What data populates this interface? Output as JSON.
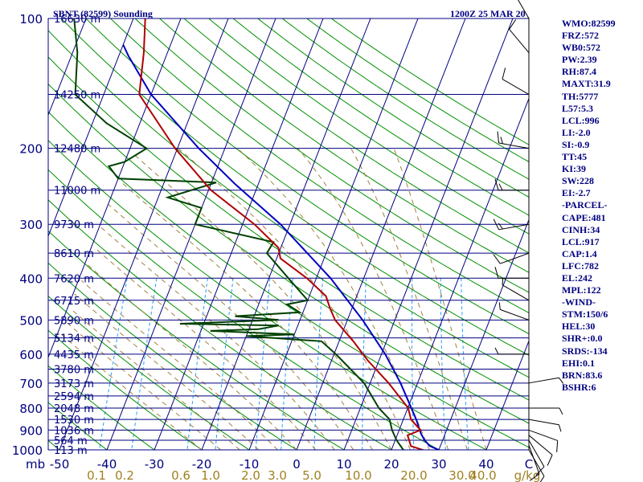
{
  "header": {
    "station_title": "SBNT (82599) Sounding",
    "time_title": "1200Z 25 MAR 20"
  },
  "indices": [
    "WMO:82599",
    "FRZ:572",
    "WB0:572",
    "PW:2.39",
    "RH:87.4",
    "MAXT:31.9",
    "TH:5777",
    "L57:5.3",
    "LCL:996",
    "LI:-2.0",
    "SI:-0.9",
    "TT:45",
    "KI:39",
    "SW:228",
    "EI:-2.7",
    "-PARCEL-",
    "CAPE:481",
    "CINH:34",
    "LCL:917",
    "CAP:1.4",
    "LFC:782",
    "EL:242",
    "MPL:122",
    "-WIND-",
    "STM:150/6",
    "HEL:30",
    "SHR+:0.0",
    "SRDS:-134",
    "EHI:0.1",
    "BRN:83.6",
    "BSHR:6"
  ],
  "colors": {
    "axes": "#000080",
    "isobar": "#000080",
    "isotherm": "#000080",
    "dry_adiabat": "#009000",
    "moist_adiabat": "#a08040",
    "mixing_ratio": "#20a0ff",
    "temperature": "#b00000",
    "dewpoint": "#004000",
    "parcel": "#0000c0",
    "wind": "#000000",
    "mixing_label": "#a08020"
  },
  "chart_data": {
    "type": "skew-t",
    "title": "SBNT (82599) Sounding",
    "y_axis_label": "mb",
    "x_axis_unit_label": "C",
    "mixing_ratio_unit_label": "g/kg",
    "pressure_ticks": [
      100,
      200,
      300,
      400,
      500,
      600,
      700,
      800,
      900,
      1000
    ],
    "temperature_ticks": [
      -50,
      -40,
      -30,
      -20,
      -10,
      0,
      10,
      20,
      30,
      40
    ],
    "mixing_ratio_labels": [
      "0.1",
      "0.2",
      "0.6",
      "1.0",
      "2.0",
      "3.0",
      "5.0",
      "10.0",
      "20.0",
      "30.0",
      "40.0"
    ],
    "height_levels": [
      {
        "p": 100,
        "label": "16630 m"
      },
      {
        "p": 150,
        "label": "14250 m"
      },
      {
        "p": 200,
        "label": "12480 m"
      },
      {
        "p": 250,
        "label": "11000 m"
      },
      {
        "p": 300,
        "label": "9730 m"
      },
      {
        "p": 350,
        "label": "8610 m"
      },
      {
        "p": 400,
        "label": "7620 m"
      },
      {
        "p": 450,
        "label": "6715 m"
      },
      {
        "p": 500,
        "label": "5890 m"
      },
      {
        "p": 550,
        "label": "5134 m"
      },
      {
        "p": 600,
        "label": "4435 m"
      },
      {
        "p": 650,
        "label": "3780 m"
      },
      {
        "p": 700,
        "label": "3173 m"
      },
      {
        "p": 750,
        "label": "2594 m"
      },
      {
        "p": 800,
        "label": "2048 m"
      },
      {
        "p": 850,
        "label": "1530 m"
      },
      {
        "p": 900,
        "label": "1036 m"
      },
      {
        "p": 950,
        "label": "564 m"
      },
      {
        "p": 1000,
        "label": "113 m"
      }
    ],
    "temperature": [
      [
        1007,
        27.2
      ],
      [
        1000,
        26.6
      ],
      [
        980,
        23.8
      ],
      [
        925,
        22.2
      ],
      [
        900,
        24.5
      ],
      [
        850,
        21.6
      ],
      [
        800,
        20.1
      ],
      [
        700,
        13.9
      ],
      [
        620,
        7.6
      ],
      [
        560,
        3.0
      ],
      [
        500,
        -2.6
      ],
      [
        470,
        -4.6
      ],
      [
        440,
        -6.5
      ],
      [
        400,
        -12.0
      ],
      [
        360,
        -19.2
      ],
      [
        340,
        -20.5
      ],
      [
        300,
        -27.5
      ],
      [
        250,
        -39.5
      ],
      [
        200,
        -50.5
      ],
      [
        150,
        -62.5
      ],
      [
        120,
        -65.0
      ],
      [
        100,
        -67.5
      ]
    ],
    "dewpoint": [
      [
        1007,
        23.0
      ],
      [
        1000,
        22.5
      ],
      [
        950,
        20.3
      ],
      [
        900,
        18.5
      ],
      [
        850,
        17.1
      ],
      [
        800,
        13.9
      ],
      [
        700,
        8.7
      ],
      [
        600,
        0.4
      ],
      [
        560,
        -3.7
      ],
      [
        545,
        -20.0
      ],
      [
        540,
        -10.0
      ],
      [
        530,
        -28.0
      ],
      [
        525,
        -18.0
      ],
      [
        515,
        -14.0
      ],
      [
        510,
        -35.0
      ],
      [
        500,
        -14.5
      ],
      [
        490,
        -24.0
      ],
      [
        480,
        -10.7
      ],
      [
        460,
        -14.0
      ],
      [
        450,
        -10.0
      ],
      [
        400,
        -15.9
      ],
      [
        350,
        -22.5
      ],
      [
        330,
        -22.0
      ],
      [
        300,
        -40.0
      ],
      [
        275,
        -40.0
      ],
      [
        260,
        -48.0
      ],
      [
        240,
        -39.0
      ],
      [
        235,
        -60.0
      ],
      [
        220,
        -63.0
      ],
      [
        215,
        -60.0
      ],
      [
        200,
        -56.5
      ],
      [
        175,
        -67.0
      ],
      [
        150,
        -76.0
      ],
      [
        120,
        -79.0
      ],
      [
        100,
        -82.5
      ]
    ],
    "parcel": [
      [
        1000,
        30.0
      ],
      [
        980,
        27.8
      ],
      [
        950,
        26.2
      ],
      [
        917,
        24.9
      ],
      [
        850,
        22.7
      ],
      [
        700,
        16.4
      ],
      [
        600,
        10.8
      ],
      [
        500,
        3.2
      ],
      [
        400,
        -7.0
      ],
      [
        300,
        -22.0
      ],
      [
        242,
        -34.9
      ],
      [
        200,
        -45.5
      ],
      [
        150,
        -60.0
      ],
      [
        122,
        -68.0
      ],
      [
        115,
        -70.0
      ]
    ],
    "wind_barbs": [
      {
        "p": 1000,
        "dir": 150,
        "spd": 5
      },
      {
        "p": 975,
        "dir": 160,
        "spd": 10
      },
      {
        "p": 950,
        "dir": 150,
        "spd": 10
      },
      {
        "p": 925,
        "dir": 130,
        "spd": 10
      },
      {
        "p": 900,
        "dir": 110,
        "spd": 10
      },
      {
        "p": 850,
        "dir": 100,
        "spd": 5
      },
      {
        "p": 800,
        "dir": 90,
        "spd": 5
      },
      {
        "p": 700,
        "dir": 80,
        "spd": 5
      },
      {
        "p": 600,
        "dir": 270,
        "spd": 5
      },
      {
        "p": 500,
        "dir": 290,
        "spd": 5
      },
      {
        "p": 450,
        "dir": 300,
        "spd": 5
      },
      {
        "p": 400,
        "dir": 270,
        "spd": 10
      },
      {
        "p": 350,
        "dir": 250,
        "spd": 10
      },
      {
        "p": 300,
        "dir": 260,
        "spd": 15
      },
      {
        "p": 250,
        "dir": 270,
        "spd": 15
      },
      {
        "p": 200,
        "dir": 280,
        "spd": 15
      },
      {
        "p": 150,
        "dir": 300,
        "spd": 10
      },
      {
        "p": 120,
        "dir": 320,
        "spd": 10
      },
      {
        "p": 100,
        "dir": 330,
        "spd": 25
      }
    ]
  }
}
